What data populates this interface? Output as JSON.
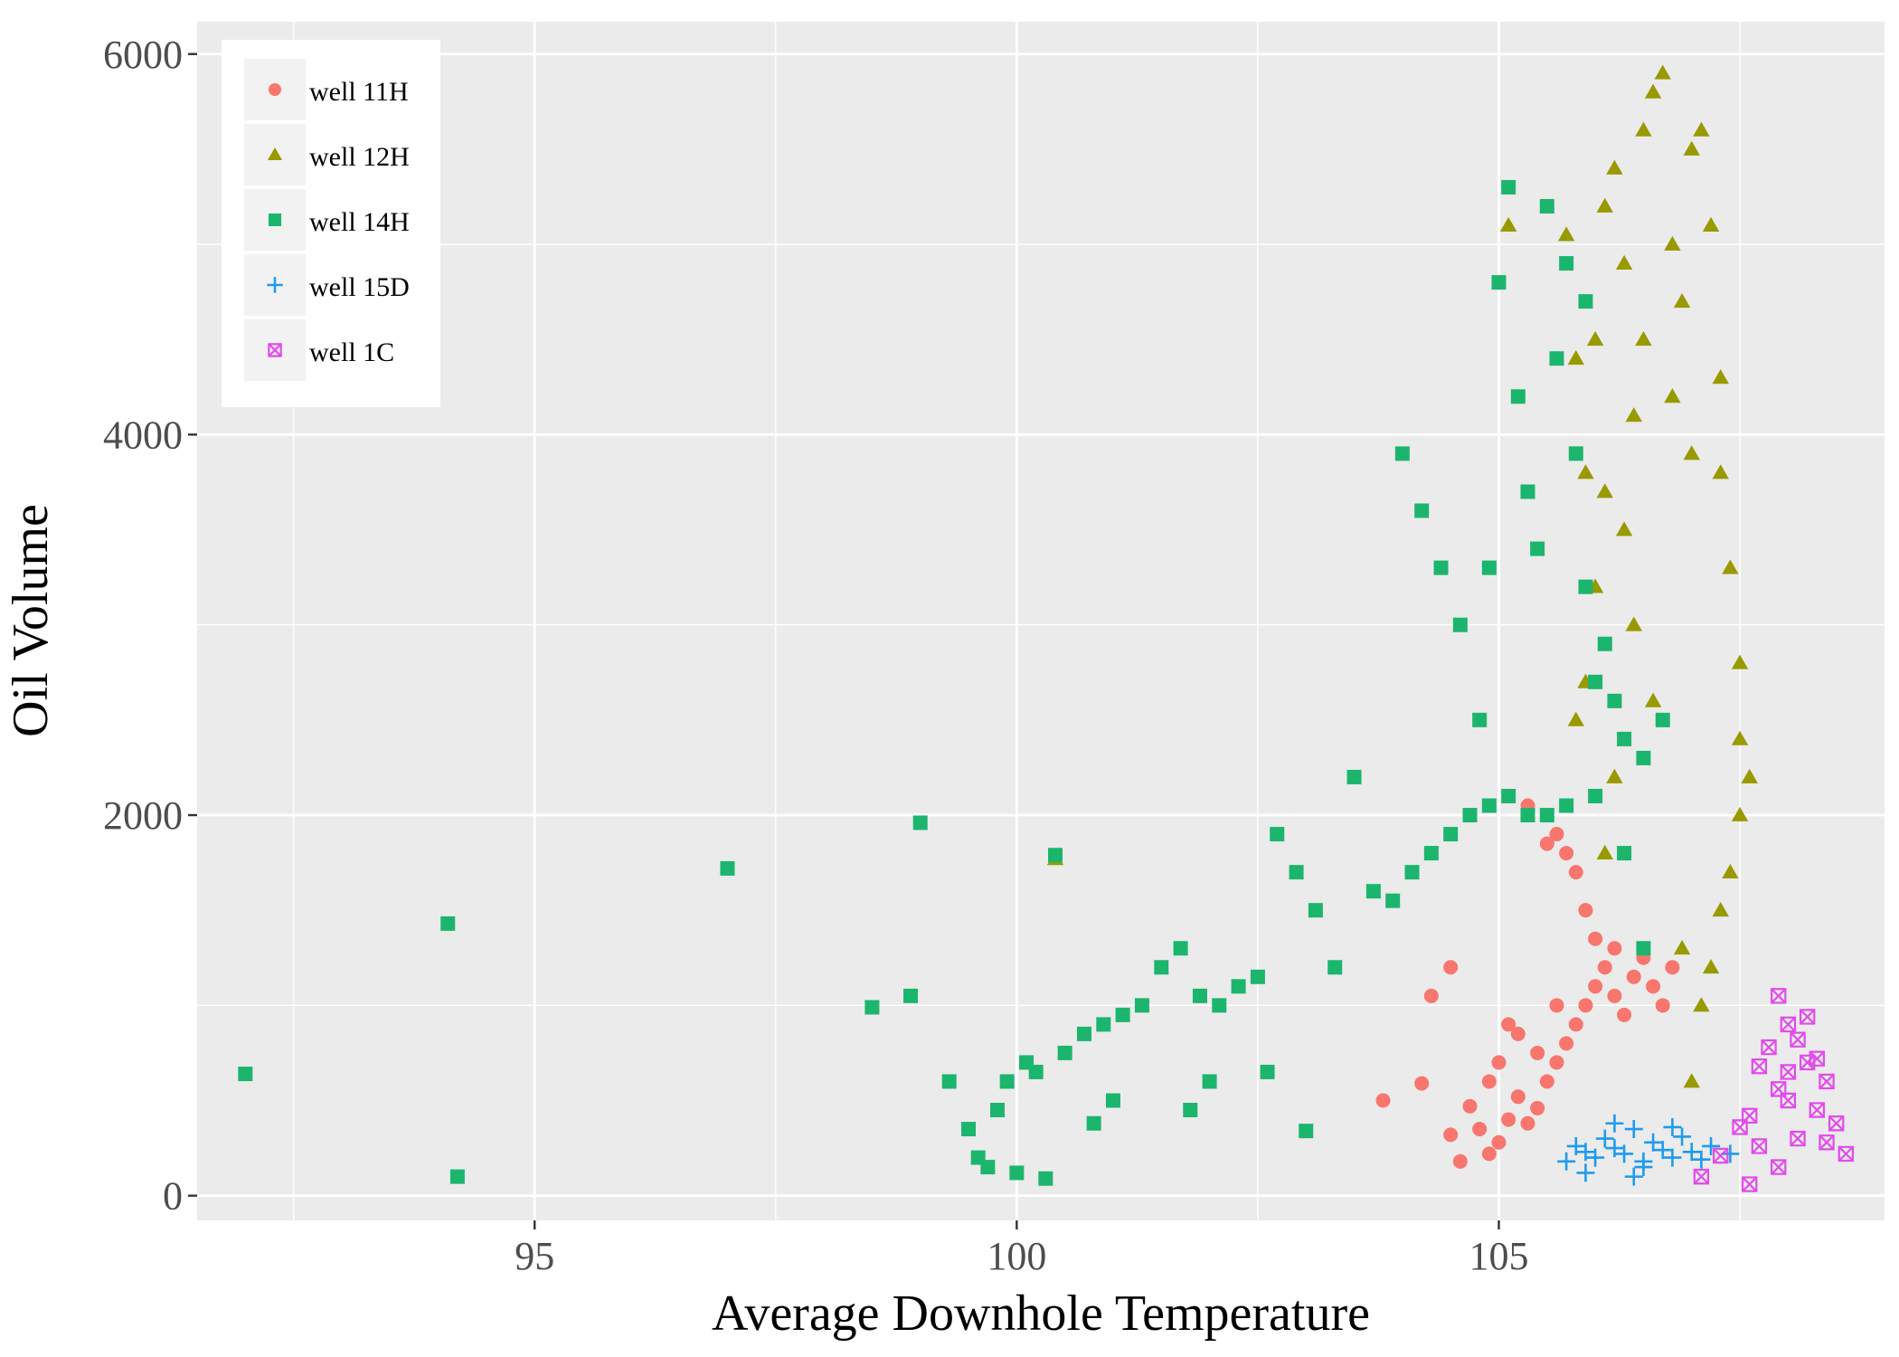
{
  "chart_data": {
    "type": "scatter",
    "title": "",
    "xlabel": "Average Downhole Temperature",
    "ylabel": "Oil Volume",
    "xlim": [
      91.5,
      109.0
    ],
    "ylim": [
      -130,
      6170
    ],
    "x_ticks": [
      95,
      100,
      105
    ],
    "x_tick_labels": [
      "95",
      "100",
      "105"
    ],
    "y_ticks": [
      0,
      2000,
      4000,
      6000
    ],
    "y_tick_labels": [
      "0",
      "2000",
      "4000",
      "6000"
    ],
    "grid": true,
    "legend_position": "top-left",
    "series": [
      {
        "name": "well 11H",
        "shape": "circle",
        "color": "#F8766D",
        "points": [
          [
            103.8,
            500
          ],
          [
            104.2,
            590
          ],
          [
            104.5,
            320
          ],
          [
            104.6,
            180
          ],
          [
            104.7,
            470
          ],
          [
            104.8,
            350
          ],
          [
            104.9,
            220
          ],
          [
            105.0,
            280
          ],
          [
            105.1,
            400
          ],
          [
            105.2,
            520
          ],
          [
            105.3,
            380
          ],
          [
            105.4,
            460
          ],
          [
            105.5,
            600
          ],
          [
            105.6,
            700
          ],
          [
            105.7,
            800
          ],
          [
            105.8,
            900
          ],
          [
            105.9,
            1000
          ],
          [
            106.0,
            1100
          ],
          [
            106.1,
            1200
          ],
          [
            106.2,
            1050
          ],
          [
            106.3,
            950
          ],
          [
            106.4,
            1150
          ],
          [
            106.5,
            1250
          ],
          [
            106.6,
            1100
          ],
          [
            106.7,
            1000
          ],
          [
            106.8,
            1200
          ],
          [
            105.6,
            1900
          ],
          [
            105.7,
            1800
          ],
          [
            105.8,
            1700
          ],
          [
            105.9,
            1500
          ],
          [
            106.0,
            1350
          ],
          [
            105.5,
            1850
          ],
          [
            105.3,
            2050
          ],
          [
            104.9,
            600
          ],
          [
            105.0,
            700
          ],
          [
            105.2,
            850
          ],
          [
            105.4,
            750
          ],
          [
            105.1,
            900
          ],
          [
            105.6,
            1000
          ],
          [
            106.2,
            1300
          ],
          [
            104.5,
            1200
          ],
          [
            104.3,
            1050
          ]
        ]
      },
      {
        "name": "well 12H",
        "shape": "triangle",
        "color": "#999900",
        "points": [
          [
            100.4,
            1770
          ],
          [
            105.1,
            5100
          ],
          [
            105.7,
            5050
          ],
          [
            105.8,
            4400
          ],
          [
            105.9,
            3800
          ],
          [
            106.0,
            3200
          ],
          [
            106.0,
            4500
          ],
          [
            106.1,
            5200
          ],
          [
            106.2,
            5400
          ],
          [
            106.3,
            4900
          ],
          [
            106.4,
            4100
          ],
          [
            106.5,
            5600
          ],
          [
            106.6,
            5800
          ],
          [
            106.7,
            5900
          ],
          [
            106.8,
            5000
          ],
          [
            106.9,
            4700
          ],
          [
            107.0,
            5500
          ],
          [
            107.1,
            5600
          ],
          [
            107.2,
            5100
          ],
          [
            107.3,
            4300
          ],
          [
            107.3,
            3800
          ],
          [
            107.4,
            3300
          ],
          [
            107.5,
            2800
          ],
          [
            107.5,
            2400
          ],
          [
            107.5,
            2000
          ],
          [
            107.4,
            1700
          ],
          [
            107.3,
            1500
          ],
          [
            107.2,
            1200
          ],
          [
            107.1,
            1000
          ],
          [
            106.9,
            1300
          ],
          [
            106.3,
            3500
          ],
          [
            106.4,
            3000
          ],
          [
            106.6,
            2600
          ],
          [
            106.2,
            2200
          ],
          [
            105.9,
            2700
          ],
          [
            105.8,
            2500
          ],
          [
            106.1,
            3700
          ],
          [
            106.5,
            4500
          ],
          [
            106.8,
            4200
          ],
          [
            107.0,
            3900
          ],
          [
            107.6,
            2200
          ],
          [
            107.0,
            600
          ],
          [
            106.1,
            1800
          ]
        ]
      },
      {
        "name": "well 14H",
        "shape": "square",
        "color": "#1CB56E",
        "points": [
          [
            92.0,
            640
          ],
          [
            94.2,
            100
          ],
          [
            94.1,
            1430
          ],
          [
            97.0,
            1720
          ],
          [
            98.5,
            990
          ],
          [
            98.9,
            1050
          ],
          [
            99.0,
            1960
          ],
          [
            99.3,
            600
          ],
          [
            99.5,
            350
          ],
          [
            99.6,
            200
          ],
          [
            99.7,
            150
          ],
          [
            99.8,
            450
          ],
          [
            99.9,
            600
          ],
          [
            100.0,
            120
          ],
          [
            100.1,
            700
          ],
          [
            100.2,
            650
          ],
          [
            100.3,
            90
          ],
          [
            100.5,
            750
          ],
          [
            100.7,
            850
          ],
          [
            100.9,
            900
          ],
          [
            101.1,
            950
          ],
          [
            101.3,
            1000
          ],
          [
            101.5,
            1200
          ],
          [
            101.7,
            1300
          ],
          [
            101.9,
            1050
          ],
          [
            102.1,
            1000
          ],
          [
            102.3,
            1100
          ],
          [
            102.5,
            1150
          ],
          [
            102.7,
            1900
          ],
          [
            102.9,
            1700
          ],
          [
            103.1,
            1500
          ],
          [
            103.3,
            1200
          ],
          [
            103.5,
            2200
          ],
          [
            103.7,
            1600
          ],
          [
            103.9,
            1550
          ],
          [
            104.1,
            1700
          ],
          [
            104.3,
            1800
          ],
          [
            104.5,
            1900
          ],
          [
            104.7,
            2000
          ],
          [
            104.9,
            2050
          ],
          [
            105.1,
            2100
          ],
          [
            105.3,
            2000
          ],
          [
            105.5,
            2000
          ],
          [
            105.7,
            2050
          ],
          [
            106.0,
            2100
          ],
          [
            106.3,
            1800
          ],
          [
            106.5,
            1300
          ],
          [
            104.0,
            3900
          ],
          [
            104.2,
            3600
          ],
          [
            104.4,
            3300
          ],
          [
            104.6,
            3000
          ],
          [
            104.8,
            2500
          ],
          [
            105.0,
            4800
          ],
          [
            105.1,
            5300
          ],
          [
            105.2,
            4200
          ],
          [
            105.3,
            3700
          ],
          [
            105.4,
            3400
          ],
          [
            105.6,
            4400
          ],
          [
            105.8,
            3900
          ],
          [
            105.9,
            3200
          ],
          [
            106.0,
            2700
          ],
          [
            106.1,
            2900
          ],
          [
            106.2,
            2600
          ],
          [
            106.3,
            2400
          ],
          [
            106.5,
            2300
          ],
          [
            106.7,
            2500
          ],
          [
            105.5,
            5200
          ],
          [
            105.7,
            4900
          ],
          [
            105.9,
            4700
          ],
          [
            104.9,
            3300
          ],
          [
            103.0,
            340
          ],
          [
            102.6,
            650
          ],
          [
            102.0,
            600
          ],
          [
            101.8,
            450
          ],
          [
            100.4,
            1790
          ],
          [
            101.0,
            500
          ],
          [
            100.8,
            380
          ]
        ]
      },
      {
        "name": "well 15D",
        "shape": "plus",
        "color": "#1E9BF0",
        "points": [
          [
            105.7,
            180
          ],
          [
            105.8,
            260
          ],
          [
            105.9,
            230
          ],
          [
            106.0,
            200
          ],
          [
            106.1,
            300
          ],
          [
            106.2,
            250
          ],
          [
            106.3,
            220
          ],
          [
            106.4,
            350
          ],
          [
            106.5,
            180
          ],
          [
            106.6,
            280
          ],
          [
            106.7,
            240
          ],
          [
            106.8,
            200
          ],
          [
            106.9,
            310
          ],
          [
            107.0,
            230
          ],
          [
            107.1,
            190
          ],
          [
            107.2,
            260
          ],
          [
            107.4,
            220
          ],
          [
            106.2,
            380
          ],
          [
            106.5,
            150
          ],
          [
            105.9,
            120
          ],
          [
            106.8,
            360
          ],
          [
            106.4,
            100
          ]
        ]
      },
      {
        "name": "well 1C",
        "shape": "boxcross",
        "color": "#E14BEB",
        "points": [
          [
            107.1,
            100
          ],
          [
            107.3,
            210
          ],
          [
            107.5,
            360
          ],
          [
            107.6,
            60
          ],
          [
            107.7,
            260
          ],
          [
            107.8,
            780
          ],
          [
            107.9,
            1050
          ],
          [
            108.0,
            900
          ],
          [
            108.0,
            500
          ],
          [
            108.1,
            300
          ],
          [
            108.2,
            700
          ],
          [
            108.3,
            450
          ],
          [
            108.4,
            600
          ],
          [
            108.5,
            380
          ],
          [
            108.6,
            220
          ],
          [
            107.9,
            150
          ],
          [
            108.2,
            940
          ],
          [
            108.0,
            650
          ],
          [
            107.7,
            680
          ],
          [
            108.4,
            280
          ],
          [
            107.6,
            420
          ],
          [
            107.9,
            560
          ],
          [
            108.1,
            820
          ],
          [
            108.3,
            720
          ]
        ]
      }
    ]
  }
}
